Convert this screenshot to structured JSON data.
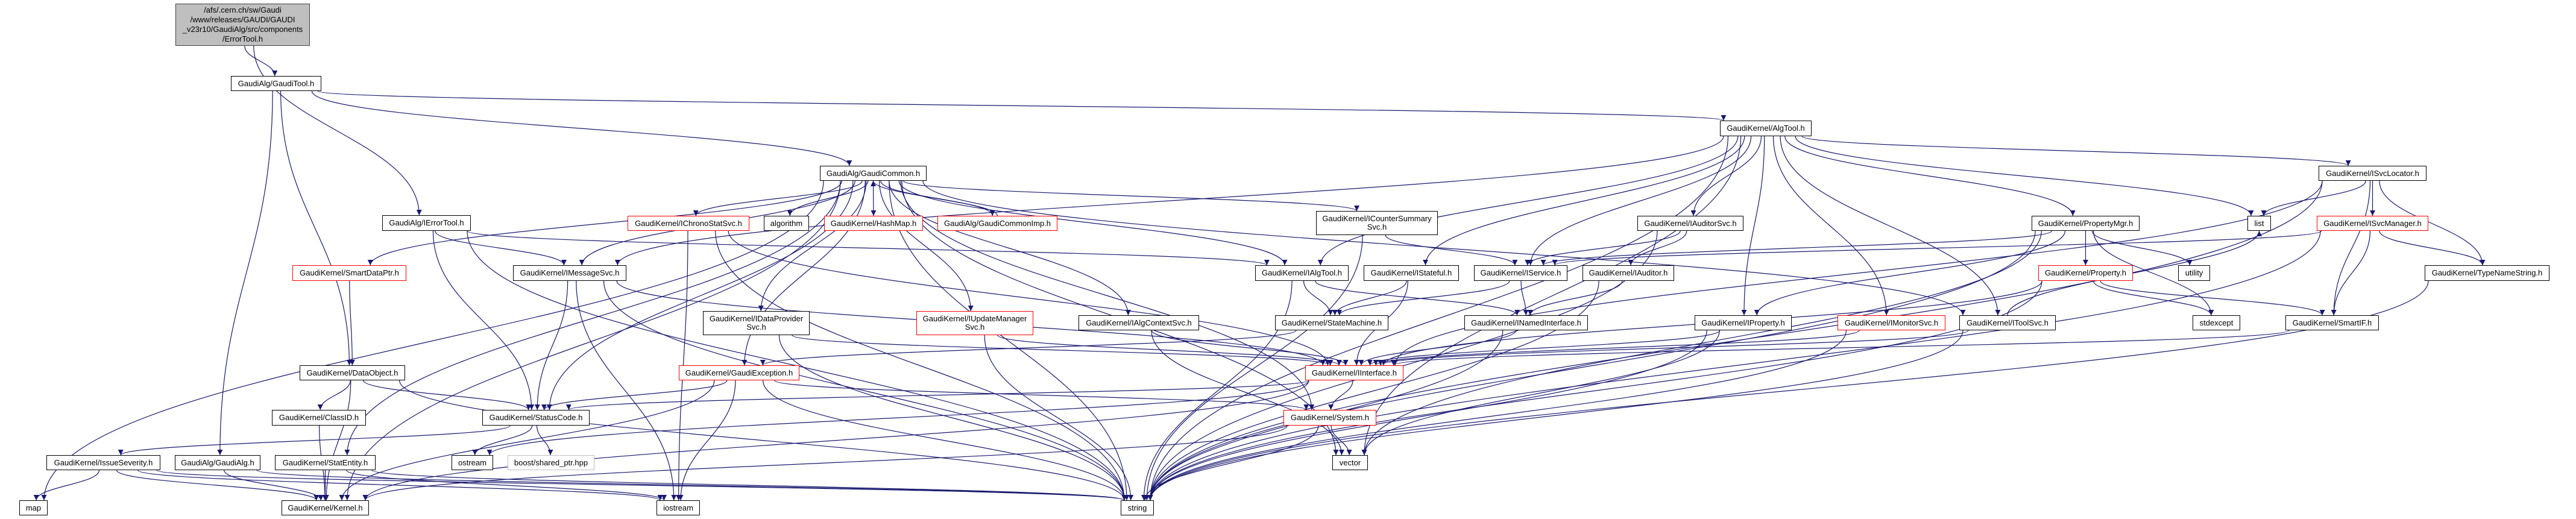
{
  "colors": {
    "edge": "#191970",
    "root_fill": "#bfbfbf",
    "incomplete_border": "#ff0000",
    "external_border": "#bfbfbf"
  },
  "nodes": [
    {
      "id": "root",
      "lines": [
        "/afs/.cern.ch/sw/Gaudi",
        "/www/releases/GAUDI/GAUDI",
        "_v23r10/GaudiAlg/src/components",
        "/ErrorTool.h"
      ],
      "style": "root"
    },
    {
      "id": "gauditool",
      "lines": [
        "GaudiAlg/GaudiTool.h"
      ],
      "style": "normal"
    },
    {
      "id": "gaudicommon",
      "lines": [
        "GaudiAlg/GaudiCommon.h"
      ],
      "style": "normal"
    },
    {
      "id": "algtool",
      "lines": [
        "GaudiKernel/AlgTool.h"
      ],
      "style": "normal"
    },
    {
      "id": "ierrortool",
      "lines": [
        "GaudiAlg/IErrorTool.h"
      ],
      "style": "normal"
    },
    {
      "id": "ichronostat",
      "lines": [
        "GaudiKernel/IChronoStatSvc.h"
      ],
      "style": "red"
    },
    {
      "id": "algorithm",
      "lines": [
        "algorithm"
      ],
      "style": "normal"
    },
    {
      "id": "hashmap",
      "lines": [
        "GaudiKernel/HashMap.h"
      ],
      "style": "red"
    },
    {
      "id": "commonimp",
      "lines": [
        "GaudiAlg/GaudiCommonImp.h"
      ],
      "style": "red"
    },
    {
      "id": "countersummary",
      "lines": [
        "GaudiKernel/ICounterSummary",
        "Svc.h"
      ],
      "style": "normal"
    },
    {
      "id": "iauditorsvc",
      "lines": [
        "GaudiKernel/IAuditorSvc.h"
      ],
      "style": "normal"
    },
    {
      "id": "propertymgr",
      "lines": [
        "GaudiKernel/PropertyMgr.h"
      ],
      "style": "normal"
    },
    {
      "id": "list",
      "lines": [
        "list"
      ],
      "style": "normal"
    },
    {
      "id": "isvclocator",
      "lines": [
        "GaudiKernel/ISvcLocator.h"
      ],
      "style": "normal"
    },
    {
      "id": "isvcmanager",
      "lines": [
        "GaudiKernel/ISvcManager.h"
      ],
      "style": "red"
    },
    {
      "id": "smartdataptr",
      "lines": [
        "GaudiKernel/SmartDataPtr.h"
      ],
      "style": "red"
    },
    {
      "id": "imessagesvc",
      "lines": [
        "GaudiKernel/IMessageSvc.h"
      ],
      "style": "normal"
    },
    {
      "id": "ialgtool",
      "lines": [
        "GaudiKernel/IAlgTool.h"
      ],
      "style": "normal"
    },
    {
      "id": "istateful",
      "lines": [
        "GaudiKernel/IStateful.h"
      ],
      "style": "normal"
    },
    {
      "id": "iservice",
      "lines": [
        "GaudiKernel/IService.h"
      ],
      "style": "normal"
    },
    {
      "id": "iauditor",
      "lines": [
        "GaudiKernel/IAuditor.h"
      ],
      "style": "normal"
    },
    {
      "id": "property",
      "lines": [
        "GaudiKernel/Property.h"
      ],
      "style": "red"
    },
    {
      "id": "utility",
      "lines": [
        "utility"
      ],
      "style": "normal"
    },
    {
      "id": "typenamestring",
      "lines": [
        "GaudiKernel/TypeNameString.h"
      ],
      "style": "normal"
    },
    {
      "id": "idataprovider",
      "lines": [
        "GaudiKernel/IDataProvider",
        "Svc.h"
      ],
      "style": "normal"
    },
    {
      "id": "iupdatemanager",
      "lines": [
        "GaudiKernel/IUpdateManager",
        "Svc.h"
      ],
      "style": "red"
    },
    {
      "id": "ialgcontext",
      "lines": [
        "GaudiKernel/IAlgContextSvc.h"
      ],
      "style": "normal"
    },
    {
      "id": "statemachine",
      "lines": [
        "GaudiKernel/StateMachine.h"
      ],
      "style": "normal"
    },
    {
      "id": "inamed",
      "lines": [
        "GaudiKernel/INamedInterface.h"
      ],
      "style": "normal"
    },
    {
      "id": "iproperty",
      "lines": [
        "GaudiKernel/IProperty.h"
      ],
      "style": "normal"
    },
    {
      "id": "imonitor",
      "lines": [
        "GaudiKernel/IMonitorSvc.h"
      ],
      "style": "red"
    },
    {
      "id": "itoolsvc",
      "lines": [
        "GaudiKernel/IToolSvc.h"
      ],
      "style": "normal"
    },
    {
      "id": "stdexcept",
      "lines": [
        "stdexcept"
      ],
      "style": "normal"
    },
    {
      "id": "smartif",
      "lines": [
        "GaudiKernel/SmartIF.h"
      ],
      "style": "normal"
    },
    {
      "id": "dataobject",
      "lines": [
        "GaudiKernel/DataObject.h"
      ],
      "style": "normal"
    },
    {
      "id": "gaudiexception",
      "lines": [
        "GaudiKernel/GaudiException.h"
      ],
      "style": "red"
    },
    {
      "id": "iinterface",
      "lines": [
        "GaudiKernel/IInterface.h"
      ],
      "style": "red"
    },
    {
      "id": "classid",
      "lines": [
        "GaudiKernel/ClassID.h"
      ],
      "style": "normal"
    },
    {
      "id": "statuscode",
      "lines": [
        "GaudiKernel/StatusCode.h"
      ],
      "style": "normal"
    },
    {
      "id": "system",
      "lines": [
        "GaudiKernel/System.h"
      ],
      "style": "red"
    },
    {
      "id": "issueseverity",
      "lines": [
        "GaudiKernel/IssueSeverity.h"
      ],
      "style": "normal"
    },
    {
      "id": "gaudialg",
      "lines": [
        "GaudiAlg/GaudiAlg.h"
      ],
      "style": "normal"
    },
    {
      "id": "statentity",
      "lines": [
        "GaudiKernel/StatEntity.h"
      ],
      "style": "normal"
    },
    {
      "id": "ostream",
      "lines": [
        "ostream"
      ],
      "style": "normal"
    },
    {
      "id": "boost",
      "lines": [
        "boost/shared_ptr.hpp"
      ],
      "style": "ext"
    },
    {
      "id": "vector",
      "lines": [
        "vector"
      ],
      "style": "normal"
    },
    {
      "id": "map",
      "lines": [
        "map"
      ],
      "style": "normal"
    },
    {
      "id": "kernel",
      "lines": [
        "GaudiKernel/Kernel.h"
      ],
      "style": "normal"
    },
    {
      "id": "iostream",
      "lines": [
        "iostream"
      ],
      "style": "normal"
    },
    {
      "id": "string",
      "lines": [
        "string"
      ],
      "style": "normal"
    }
  ],
  "edges": [
    [
      "root",
      "gauditool"
    ],
    [
      "root",
      "ierrortool"
    ],
    [
      "gauditool",
      "algtool"
    ],
    [
      "gauditool",
      "gaudicommon"
    ],
    [
      "gauditool",
      "gaudialg"
    ],
    [
      "gauditool",
      "dataobject"
    ],
    [
      "gaudicommon",
      "map"
    ],
    [
      "gaudicommon",
      "statentity"
    ],
    [
      "gaudicommon",
      "smartdataptr"
    ],
    [
      "gaudicommon",
      "imessagesvc"
    ],
    [
      "gaudicommon",
      "statuscode"
    ],
    [
      "gaudicommon",
      "ichronostat"
    ],
    [
      "gaudicommon",
      "algorithm"
    ],
    [
      "gaudicommon",
      "hashmap"
    ],
    [
      "gaudicommon",
      "commonimp"
    ],
    [
      "gaudicommon",
      "countersummary"
    ],
    [
      "gaudicommon",
      "idataprovider"
    ],
    [
      "gaudicommon",
      "gaudiexception"
    ],
    [
      "gaudicommon",
      "iupdatemanager"
    ],
    [
      "gaudicommon",
      "ialgcontext"
    ],
    [
      "gaudicommon",
      "ialgtool"
    ],
    [
      "gaudicommon",
      "itoolsvc"
    ],
    [
      "gaudicommon",
      "system"
    ],
    [
      "gaudicommon",
      "string"
    ],
    [
      "gaudicommon",
      "vector"
    ],
    [
      "gaudicommon",
      "kernel"
    ],
    [
      "commonimp",
      "gaudicommon"
    ],
    [
      "ierrortool",
      "ialgtool"
    ],
    [
      "ierrortool",
      "statuscode"
    ],
    [
      "ierrortool",
      "imessagesvc"
    ],
    [
      "ierrortool",
      "string"
    ],
    [
      "algtool",
      "ialgtool"
    ],
    [
      "algtool",
      "istateful"
    ],
    [
      "algtool",
      "iservice"
    ],
    [
      "algtool",
      "iauditorsvc"
    ],
    [
      "algtool",
      "iproperty"
    ],
    [
      "algtool",
      "imonitor"
    ],
    [
      "algtool",
      "itoolsvc"
    ],
    [
      "algtool",
      "propertymgr"
    ],
    [
      "algtool",
      "isvclocator"
    ],
    [
      "algtool",
      "list"
    ],
    [
      "algtool",
      "imessagesvc"
    ],
    [
      "algtool",
      "vector"
    ],
    [
      "algtool",
      "string"
    ],
    [
      "smartdataptr",
      "dataobject"
    ],
    [
      "dataobject",
      "classid"
    ],
    [
      "dataobject",
      "statuscode"
    ],
    [
      "dataobject",
      "kernel"
    ],
    [
      "dataobject",
      "string"
    ],
    [
      "classid",
      "kernel"
    ],
    [
      "issueseverity",
      "map"
    ],
    [
      "issueseverity",
      "kernel"
    ],
    [
      "issueseverity",
      "string"
    ],
    [
      "issueseverity",
      "iostream"
    ],
    [
      "gaudialg",
      "kernel"
    ],
    [
      "gaudialg",
      "string"
    ],
    [
      "statentity",
      "kernel"
    ],
    [
      "statentity",
      "string"
    ],
    [
      "statentity",
      "iostream"
    ],
    [
      "statuscode",
      "ostream"
    ],
    [
      "statuscode",
      "boost"
    ],
    [
      "statuscode",
      "issueseverity"
    ],
    [
      "imessagesvc",
      "statuscode"
    ],
    [
      "imessagesvc",
      "iinterface"
    ],
    [
      "imessagesvc",
      "iostream"
    ],
    [
      "imessagesvc",
      "string"
    ],
    [
      "idataprovider",
      "iinterface"
    ],
    [
      "idataprovider",
      "string"
    ],
    [
      "gaudiexception",
      "statuscode"
    ],
    [
      "gaudiexception",
      "system"
    ],
    [
      "gaudiexception",
      "kernel"
    ],
    [
      "gaudiexception",
      "iostream"
    ],
    [
      "gaudiexception",
      "string"
    ],
    [
      "ichronostat",
      "iinterface"
    ],
    [
      "ichronostat",
      "iostream"
    ],
    [
      "ichronostat",
      "string"
    ],
    [
      "iupdatemanager",
      "iinterface"
    ],
    [
      "iupdatemanager",
      "string"
    ],
    [
      "ialgcontext",
      "iinterface"
    ],
    [
      "ialgcontext",
      "vector"
    ],
    [
      "countersummary",
      "iservice"
    ],
    [
      "countersummary",
      "string"
    ],
    [
      "ialgtool",
      "statemachine"
    ],
    [
      "ialgtool",
      "inamed"
    ],
    [
      "ialgtool",
      "string"
    ],
    [
      "istateful",
      "statemachine"
    ],
    [
      "istateful",
      "iinterface"
    ],
    [
      "iservice",
      "statemachine"
    ],
    [
      "iservice",
      "inamed"
    ],
    [
      "iauditor",
      "inamed"
    ],
    [
      "iauditor",
      "string"
    ],
    [
      "iauditorsvc",
      "iservice"
    ],
    [
      "iauditorsvc",
      "iauditor"
    ],
    [
      "iauditorsvc",
      "string"
    ],
    [
      "statemachine",
      "gaudiexception"
    ],
    [
      "inamed",
      "iinterface"
    ],
    [
      "inamed",
      "string"
    ],
    [
      "iinterface",
      "system"
    ],
    [
      "iinterface",
      "kernel"
    ],
    [
      "iinterface",
      "statuscode"
    ],
    [
      "iinterface",
      "ostream"
    ],
    [
      "system",
      "kernel"
    ],
    [
      "system",
      "vector"
    ],
    [
      "system",
      "string"
    ],
    [
      "iproperty",
      "iinterface"
    ],
    [
      "iproperty",
      "string"
    ],
    [
      "iproperty",
      "vector"
    ],
    [
      "imonitor",
      "iinterface"
    ],
    [
      "imonitor",
      "string"
    ],
    [
      "itoolsvc",
      "iinterface"
    ],
    [
      "itoolsvc",
      "list"
    ],
    [
      "itoolsvc",
      "string"
    ],
    [
      "propertymgr",
      "iproperty"
    ],
    [
      "propertymgr",
      "property"
    ],
    [
      "propertymgr",
      "stdexcept"
    ],
    [
      "propertymgr",
      "utility"
    ],
    [
      "propertymgr",
      "vector"
    ],
    [
      "propertymgr",
      "string"
    ],
    [
      "propertymgr",
      "iservice"
    ],
    [
      "property",
      "smartif"
    ],
    [
      "property",
      "stdexcept"
    ],
    [
      "property",
      "string"
    ],
    [
      "property",
      "iinterface"
    ],
    [
      "isvclocator",
      "list"
    ],
    [
      "isvclocator",
      "isvcmanager"
    ],
    [
      "isvclocator",
      "smartif"
    ],
    [
      "isvclocator",
      "typenamestring"
    ],
    [
      "isvclocator",
      "string"
    ],
    [
      "isvclocator",
      "iinterface"
    ],
    [
      "isvcmanager",
      "iservice"
    ],
    [
      "isvcmanager",
      "smartif"
    ],
    [
      "isvcmanager",
      "typenamestring"
    ],
    [
      "isvcmanager",
      "string"
    ],
    [
      "smartif",
      "iinterface"
    ],
    [
      "typenamestring",
      "string"
    ]
  ]
}
